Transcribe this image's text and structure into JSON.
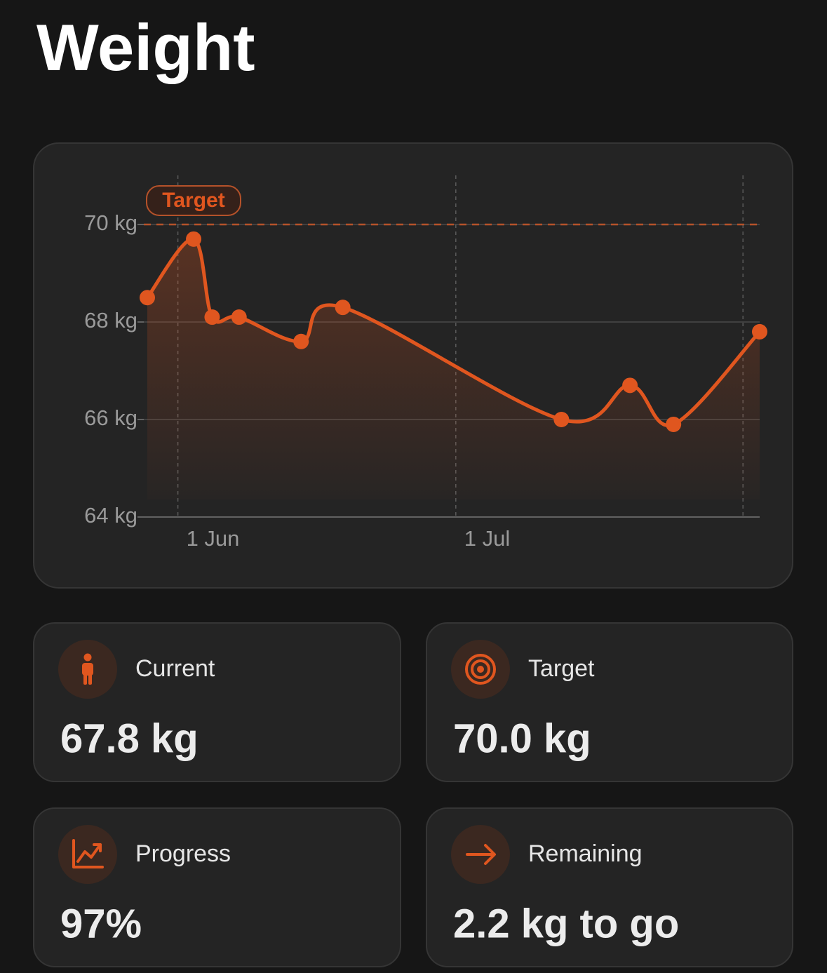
{
  "header": {
    "title": "Weight"
  },
  "chart_data": {
    "type": "line",
    "x": [
      -3.3,
      1.7,
      3.7,
      6.6,
      13.3,
      17.8,
      41.4,
      48.8,
      53.5,
      62.8
    ],
    "series": [
      {
        "name": null,
        "color": "#e0561f",
        "values": [
          68.5,
          69.7,
          68.1,
          68.1,
          67.6,
          68.3,
          66.0,
          66.7,
          65.9,
          67.8
        ]
      }
    ],
    "xlim": [
      -3.3,
      62.8
    ],
    "xticks": [
      {
        "value": 0,
        "label": "1 Jun"
      },
      {
        "value": 30,
        "label": "1 Jul"
      },
      {
        "value": 61,
        "label": null
      }
    ],
    "ylim": [
      64,
      70
    ],
    "yticks": [
      {
        "value": 64,
        "label": "64 kg"
      },
      {
        "value": 66,
        "label": "66 kg"
      },
      {
        "value": 68,
        "label": "68 kg"
      },
      {
        "value": 70,
        "label": "70 kg"
      }
    ],
    "target": {
      "value": 70,
      "label": "Target"
    },
    "grid": true
  },
  "cards": [
    {
      "label": "Current",
      "value": "67.8 kg"
    },
    {
      "label": "Target",
      "value": "70.0 kg"
    },
    {
      "label": "Progress",
      "value": "97%"
    },
    {
      "label": "Remaining",
      "value": "2.2 kg to go"
    }
  ]
}
